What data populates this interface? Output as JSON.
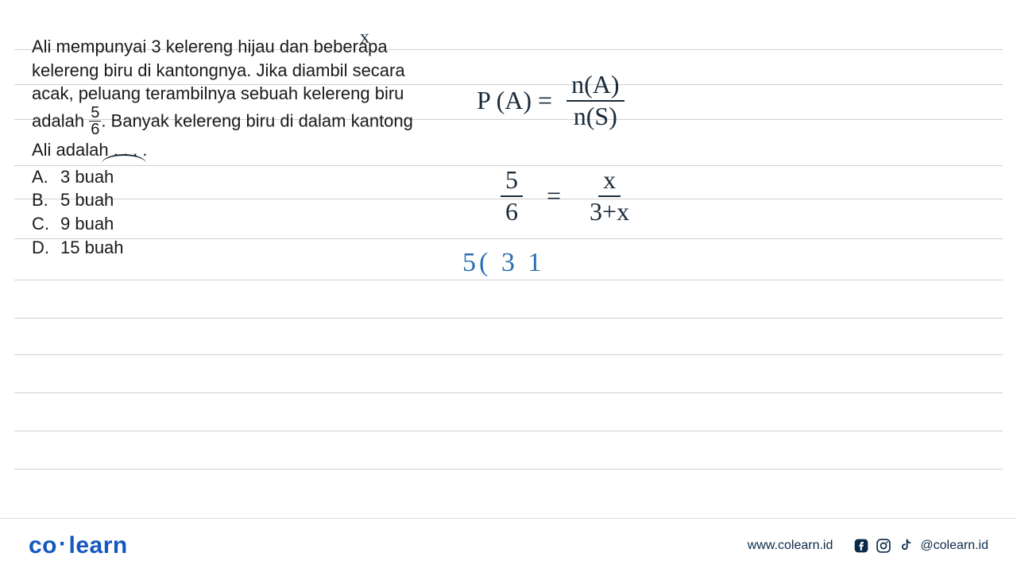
{
  "ruled_line_color": "#d0d0d0",
  "ruled_line_tops": [
    62,
    106,
    150,
    208,
    250,
    300,
    352,
    400,
    446,
    494,
    542,
    590
  ],
  "question": {
    "text_before_fraction": "Ali mempunyai 3 kelereng hijau dan beberapa kelereng biru di kantongnya. Jika diambil secara acak, peluang terambilnya sebuah kelereng biru adalah ",
    "fraction": {
      "num": "5",
      "den": "6"
    },
    "text_after_fraction": ". Banyak kelereng biru di dalam kantong Ali adalah . . . .",
    "font_size": 22,
    "color": "#1a1a1a"
  },
  "options": [
    {
      "letter": "A.",
      "text": "3 buah"
    },
    {
      "letter": "B.",
      "text": "5 buah"
    },
    {
      "letter": "C.",
      "text": "9 buah"
    },
    {
      "letter": "D.",
      "text": "15 buah"
    }
  ],
  "handwriting": {
    "annot_x": "x",
    "eq1": {
      "lhs": "P (A) =",
      "rhs_num": "n(A)",
      "rhs_den": "n(S)"
    },
    "eq2": {
      "lhs_num": "5",
      "lhs_den": "6",
      "eq": "=",
      "rhs_num": "x",
      "rhs_den": "3+x"
    },
    "eq3": "5( 3 1",
    "color_dark": "#1a2a3a",
    "color_blue": "#2a6fb0",
    "font_size": 32
  },
  "footer": {
    "logo_co": "co",
    "logo_learn": "learn",
    "url": "www.colearn.id",
    "handle": "@colearn.id",
    "logo_color": "#1558c0",
    "text_color": "#0a2a4a"
  }
}
